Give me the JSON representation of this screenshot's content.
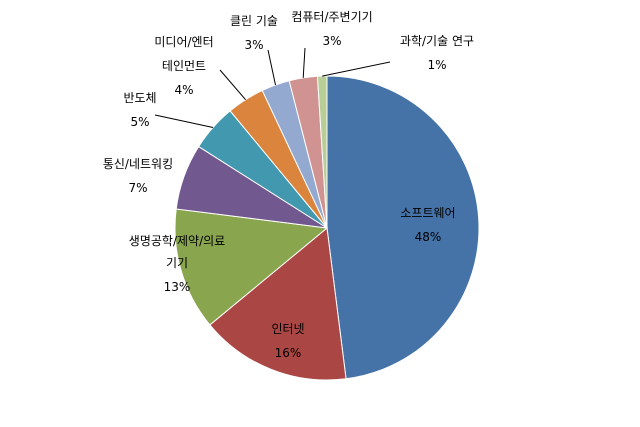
{
  "chart_data": {
    "type": "pie",
    "title": "",
    "slices": [
      {
        "name": "소프트웨어",
        "value": 48,
        "label_pct": "48%",
        "color": "#4572A7"
      },
      {
        "name": "인터넷",
        "value": 16,
        "label_pct": "16%",
        "color": "#AA4643"
      },
      {
        "name": "생명공학/제약/의료 기기",
        "value": 13,
        "label_pct": "13%",
        "color": "#89A54E"
      },
      {
        "name": "통신/네트워킹",
        "value": 7,
        "label_pct": "7%",
        "color": "#71588F"
      },
      {
        "name": "반도체",
        "value": 5,
        "label_pct": "5%",
        "color": "#4198AF"
      },
      {
        "name": "미디어/엔터테인먼트",
        "value": 4,
        "label_pct": "4%",
        "color": "#DB843D"
      },
      {
        "name": "클린 기술",
        "value": 3,
        "label_pct": "3%",
        "color": "#93A9CF"
      },
      {
        "name": "컴퓨터/주변기기",
        "value": 3,
        "label_pct": "3%",
        "color": "#D19392"
      },
      {
        "name": "과학/기술 연구",
        "value": 1,
        "label_pct": "1%",
        "color": "#B9CD96"
      }
    ]
  }
}
